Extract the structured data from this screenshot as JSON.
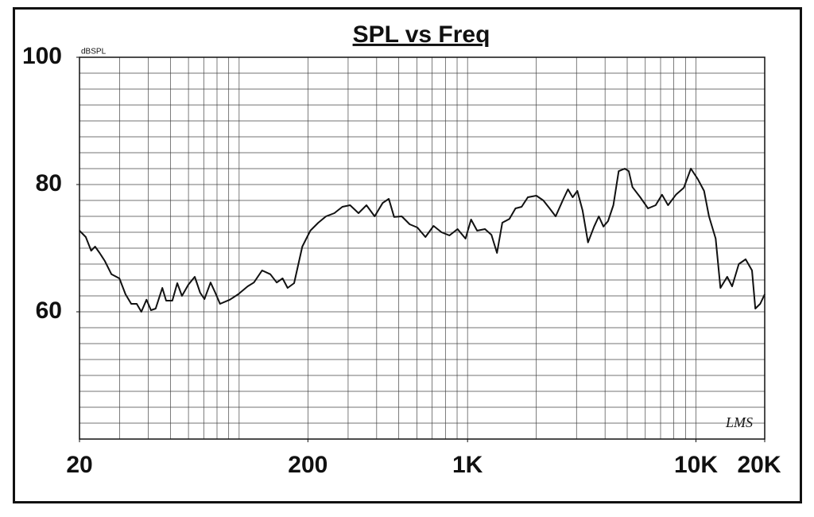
{
  "chart_data": {
    "type": "line",
    "title": "SPL vs Freq",
    "y_label": "dBSPL",
    "annotation": "LMS",
    "log_x": true,
    "grid": true,
    "color": "#111111",
    "xlim": [
      20,
      20000
    ],
    "ylim": [
      40,
      100
    ],
    "xticks": [
      20,
      200,
      {
        "value": 1000,
        "label": "1K"
      },
      {
        "value": 10000,
        "label": "10K"
      },
      {
        "value": 20000,
        "label": "20K"
      }
    ],
    "yticks": [
      60,
      80,
      100
    ],
    "xgrid": [
      20,
      30,
      40,
      50,
      60,
      70,
      80,
      90,
      100,
      200,
      300,
      400,
      500,
      600,
      700,
      800,
      900,
      1000,
      2000,
      3000,
      4000,
      5000,
      6000,
      7000,
      8000,
      9000,
      10000,
      20000
    ],
    "ygrid": [
      40,
      42.5,
      45,
      47.5,
      50,
      52.5,
      55,
      57.5,
      60,
      62.5,
      65,
      67.5,
      70,
      72.5,
      75,
      77.5,
      80,
      82.5,
      85,
      87.5,
      90,
      92.5,
      95,
      97.5,
      100
    ],
    "x": [
      20,
      21.3,
      22.5,
      23.4,
      24.5,
      25.8,
      27.6,
      29.9,
      31.8,
      33.7,
      35.6,
      37.3,
      39.3,
      41.1,
      43.1,
      46.1,
      47.9,
      51,
      53.6,
      56.2,
      59.9,
      63.9,
      67.5,
      70.5,
      75,
      78.6,
      82.5,
      91,
      99,
      109,
      116,
      126,
      137,
      146,
      155,
      163,
      174,
      189,
      205,
      222,
      240,
      261,
      283,
      306,
      333,
      361,
      392,
      425,
      452,
      477,
      515,
      558,
      603,
      654,
      710,
      769,
      833,
      904,
      980,
      1036,
      1101,
      1192,
      1272,
      1345,
      1420,
      1525,
      1622,
      1725,
      1836,
      2001,
      2146,
      2287,
      2430,
      2630,
      2751,
      2885,
      3025,
      3190,
      3367,
      3582,
      3755,
      3935,
      4120,
      4350,
      4590,
      4880,
      5080,
      5270,
      5700,
      6170,
      6660,
      7100,
      7550,
      8170,
      8850,
      9500,
      10170,
      10850,
      11400,
      12200,
      12800,
      13700,
      14400,
      15400,
      16500,
      17600,
      18200,
      19100,
      20000
    ],
    "values": [
      72.75,
      71.75,
      69.6,
      70.25,
      69.25,
      68,
      65.9,
      65.25,
      62.75,
      61.25,
      61.25,
      60,
      61.9,
      60.25,
      60.5,
      63.75,
      61.75,
      61.75,
      64.5,
      62.5,
      64.25,
      65.5,
      63,
      62,
      64.6,
      63,
      61.25,
      61.9,
      62.75,
      64,
      64.6,
      66.5,
      65.9,
      64.6,
      65.25,
      63.75,
      64.5,
      70.25,
      72.75,
      74,
      75,
      75.5,
      76.5,
      76.75,
      75.5,
      76.75,
      75,
      77.1,
      77.75,
      74.9,
      75,
      73.75,
      73.25,
      71.75,
      73.5,
      72.5,
      72,
      73,
      71.5,
      74.5,
      72.75,
      73,
      72.1,
      69.25,
      74,
      74.6,
      76.25,
      76.5,
      78,
      78.25,
      77.5,
      76.25,
      75,
      77.75,
      79.25,
      78,
      79,
      75.9,
      70.9,
      73.4,
      75,
      73.4,
      74.25,
      76.75,
      82.1,
      82.5,
      82.1,
      79.6,
      78,
      76.25,
      76.75,
      78.4,
      76.75,
      78.4,
      79.5,
      82.5,
      80.9,
      79,
      75,
      71.5,
      63.75,
      65.5,
      64,
      67.5,
      68.25,
      66.5,
      60.5,
      61.25,
      62.75
    ]
  }
}
